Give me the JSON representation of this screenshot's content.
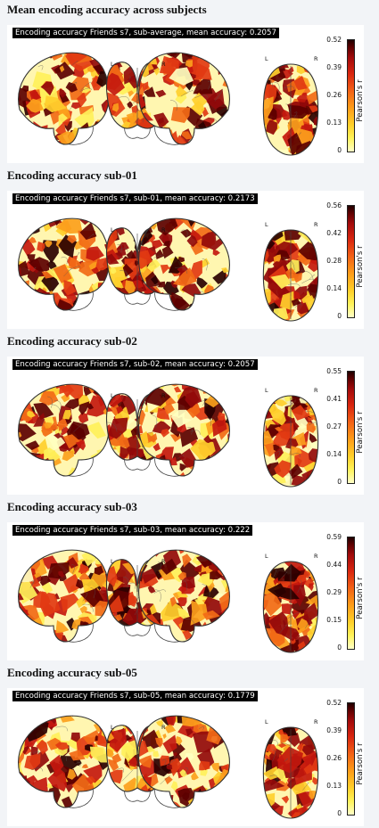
{
  "colormap": [
    "#ffffc0",
    "#fff05a",
    "#ffcf2c",
    "#fc9f1c",
    "#f26a16",
    "#e23a12",
    "#c4180e",
    "#92090a",
    "#5c0000",
    "#2a0000"
  ],
  "panels": [
    {
      "title": "Mean encoding accuracy across subjects",
      "banner": "Encoding accuracy Friends s7, sub-average, mean accuracy: 0.2057",
      "views": {
        "left": "L",
        "right": "R"
      },
      "colorbar_ticks": [
        "0",
        "0.13",
        "0.26",
        "0.39",
        "0.52"
      ],
      "colorbar_label": "Pearson's r",
      "chart_data": {
        "type": "heatmap",
        "title": "Encoding accuracy Friends s7, sub-average, mean accuracy: 0.2057",
        "mean_accuracy": 0.2057,
        "colorbar_range": [
          0,
          0.52
        ],
        "colorbar_label": "Pearson's r"
      }
    },
    {
      "title": "Encoding accuracy sub-01",
      "banner": "Encoding accuracy Friends s7, sub-01, mean accuracy: 0.2173",
      "views": {
        "left": "L",
        "right": "R"
      },
      "colorbar_ticks": [
        "0",
        "0.14",
        "0.28",
        "0.42",
        "0.56"
      ],
      "colorbar_label": "Pearson's r",
      "chart_data": {
        "type": "heatmap",
        "title": "Encoding accuracy Friends s7, sub-01, mean accuracy: 0.2173",
        "mean_accuracy": 0.2173,
        "colorbar_range": [
          0,
          0.56
        ],
        "colorbar_label": "Pearson's r"
      }
    },
    {
      "title": "Encoding accuracy sub-02",
      "banner": "Encoding accuracy Friends s7, sub-02, mean accuracy: 0.2057",
      "views": {
        "left": "L",
        "right": "R"
      },
      "colorbar_ticks": [
        "0",
        "0.14",
        "0.27",
        "0.41",
        "0.55"
      ],
      "colorbar_label": "Pearson's r",
      "chart_data": {
        "type": "heatmap",
        "title": "Encoding accuracy Friends s7, sub-02, mean accuracy: 0.2057",
        "mean_accuracy": 0.2057,
        "colorbar_range": [
          0,
          0.55
        ],
        "colorbar_label": "Pearson's r"
      }
    },
    {
      "title": "Encoding accuracy sub-03",
      "banner": "Encoding accuracy Friends s7, sub-03, mean accuracy: 0.222",
      "views": {
        "left": "L",
        "right": "R"
      },
      "colorbar_ticks": [
        "0",
        "0.15",
        "0.29",
        "0.44",
        "0.59"
      ],
      "colorbar_label": "Pearson's r",
      "chart_data": {
        "type": "heatmap",
        "title": "Encoding accuracy Friends s7, sub-03, mean accuracy: 0.222",
        "mean_accuracy": 0.222,
        "colorbar_range": [
          0,
          0.59
        ],
        "colorbar_label": "Pearson's r"
      }
    },
    {
      "title": "Encoding accuracy sub-05",
      "banner": "Encoding accuracy Friends s7, sub-05, mean accuracy: 0.1779",
      "views": {
        "left": "L",
        "right": "R"
      },
      "colorbar_ticks": [
        "0",
        "0.13",
        "0.26",
        "0.39",
        "0.52"
      ],
      "colorbar_label": "Pearson's r",
      "chart_data": {
        "type": "heatmap",
        "title": "Encoding accuracy Friends s7, sub-05, mean accuracy: 0.1779",
        "mean_accuracy": 0.1779,
        "colorbar_range": [
          0,
          0.52
        ],
        "colorbar_label": "Pearson's r"
      }
    }
  ]
}
